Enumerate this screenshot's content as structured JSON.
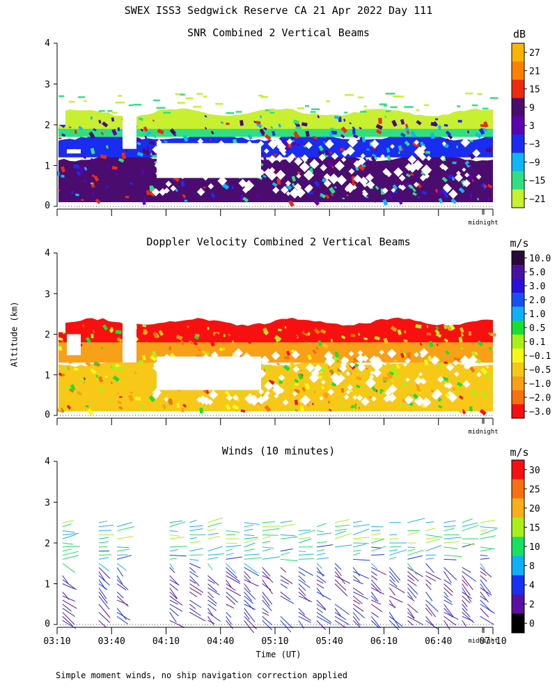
{
  "header": {
    "title": "SWEX ISS3 Sedgwick Reserve CA  21 Apr 2022 Day 111"
  },
  "footer": {
    "note": "Simple moment winds, no ship navigation correction applied"
  },
  "axes": {
    "ylabel": "Altitude (km)",
    "xlabel": "Time (UT)",
    "yticks": [
      "0",
      "1",
      "2",
      "3",
      "4"
    ],
    "xticks": [
      "03:10",
      "03:40",
      "04:10",
      "04:40",
      "05:10",
      "05:40",
      "06:10",
      "06:40",
      "07:10"
    ],
    "midnight_label": "midnight"
  },
  "chart_data": [
    {
      "type": "heatmap",
      "title": "SNR Combined 2 Vertical Beams",
      "ylim": [
        0,
        4
      ],
      "colorbar": {
        "unit": "dB",
        "labels": [
          "27",
          "21",
          "15",
          "9",
          "3",
          "−3",
          "−9",
          "−15",
          "−21"
        ],
        "colors": [
          "#fbb500",
          "#ff8000",
          "#ee2a10",
          "#4b0c70",
          "#5d00b0",
          "#1a2cf0",
          "#10b6f8",
          "#30e080",
          "#c8f030"
        ]
      },
      "layers": [
        {
          "band": "top",
          "alt_range_km": [
            1.9,
            2.3
          ],
          "color": "#c8f030"
        },
        {
          "band": "upper",
          "alt_range_km": [
            1.7,
            2.0
          ],
          "color": "#30e080"
        },
        {
          "band": "middle",
          "alt_range_km": [
            1.2,
            1.7
          ],
          "color": "#1a2cf0"
        },
        {
          "band": "lower",
          "alt_range_km": [
            0.1,
            1.2
          ],
          "color": "#4b0c70"
        }
      ]
    },
    {
      "type": "heatmap",
      "title": "Doppler Velocity Combined 2 Vertical Beams",
      "ylim": [
        0,
        4
      ],
      "colorbar": {
        "unit": "m/s",
        "labels": [
          "10.0",
          "5.0",
          "3.0",
          "2.0",
          "1.0",
          "0.5",
          "0.1",
          "−0.1",
          "−0.5",
          "−1.0",
          "−2.0",
          "−3.0"
        ],
        "colors": [
          "#2a0838",
          "#4a10a0",
          "#2810d8",
          "#1850f0",
          "#10b0f8",
          "#18e030",
          "#a8f018",
          "#f8f818",
          "#f8c818",
          "#f8a018",
          "#f87010",
          "#f81010"
        ]
      },
      "layers": [
        {
          "band": "top",
          "alt_range_km": [
            1.8,
            2.3
          ],
          "color": "#f81010"
        },
        {
          "band": "upper",
          "alt_range_km": [
            1.3,
            1.9
          ],
          "color": "#f8a018"
        },
        {
          "band": "lower",
          "alt_range_km": [
            0.1,
            1.3
          ],
          "color": "#f8c818"
        }
      ]
    },
    {
      "type": "scatter",
      "title": "Winds (10 minutes)",
      "ylim": [
        0,
        4
      ],
      "colorbar": {
        "unit": "m/s",
        "labels": [
          "30",
          "25",
          "20",
          "15",
          "10",
          "8",
          "4",
          "2",
          "0"
        ],
        "colors": [
          "#f81010",
          "#f87010",
          "#f8b018",
          "#a8f018",
          "#18e060",
          "#10b0f8",
          "#1830f0",
          "#5a10a0",
          "#000000"
        ]
      },
      "columns_time_ut": [
        "03:13",
        "03:33",
        "03:43",
        "04:12",
        "04:23",
        "04:33",
        "04:43",
        "04:53",
        "05:03",
        "05:13",
        "05:23",
        "05:33",
        "05:43",
        "05:53",
        "06:03",
        "06:13",
        "06:23",
        "06:33",
        "06:43",
        "06:53",
        "07:03"
      ]
    }
  ]
}
